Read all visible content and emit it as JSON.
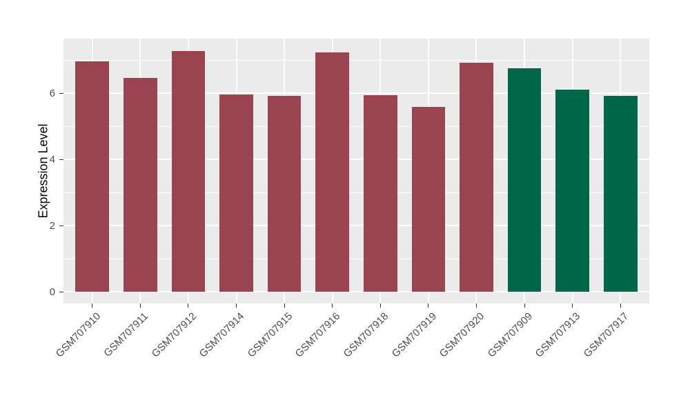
{
  "chart_data": {
    "type": "bar",
    "title": "",
    "xlabel": "",
    "ylabel": "Expression Level",
    "categories": [
      "GSM707910",
      "GSM707911",
      "GSM707912",
      "GSM707914",
      "GSM707915",
      "GSM707916",
      "GSM707918",
      "GSM707919",
      "GSM707920",
      "GSM707909",
      "GSM707913",
      "GSM707917"
    ],
    "values": [
      6.96,
      6.46,
      7.27,
      5.96,
      5.92,
      7.23,
      5.94,
      5.58,
      6.92,
      6.75,
      6.1,
      5.92
    ],
    "bar_colors": [
      "#9A4351",
      "#9A4351",
      "#9A4351",
      "#9A4351",
      "#9A4351",
      "#9A4351",
      "#9A4351",
      "#9A4351",
      "#9A4351",
      "#006648",
      "#006648",
      "#006648"
    ],
    "color_groups": {
      "maroon": "#9A4351",
      "green": "#006648"
    },
    "yticks": [
      0,
      2,
      4,
      6
    ],
    "yticks_minor": [
      1,
      3,
      5,
      7
    ],
    "ylim": [
      -0.37,
      7.65
    ],
    "bar_width_fraction": 0.7,
    "x_label_rotation_deg": 45,
    "legend": "none",
    "grid": true,
    "panel_bg": "#EBEBEB",
    "grid_color": "#FFFFFF",
    "axis_text_color": "#4D4D4D",
    "axis_title_color": "#000000",
    "tick_mark_color": "#333333",
    "background": "#FFFFFF"
  }
}
